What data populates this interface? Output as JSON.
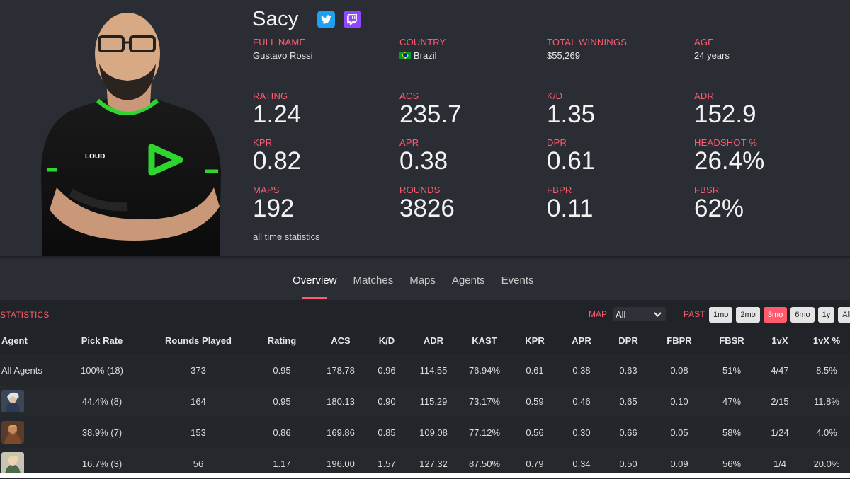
{
  "player": {
    "name": "Sacy",
    "full_name_label": "FULL NAME",
    "full_name": "Gustavo Rossi",
    "country_label": "COUNTRY",
    "country": "Brazil",
    "winnings_label": "TOTAL WINNINGS",
    "winnings": "$55,269",
    "age_label": "AGE",
    "age": "24 years"
  },
  "icons": {
    "twitter": "twitter-icon",
    "twitch": "twitch-icon",
    "flag": "brazil-flag-icon",
    "chevron": "chevron-down-icon"
  },
  "colors": {
    "accent": "#ff5b6e",
    "panel": "#2a2d33",
    "table_bg": "#202327",
    "twitter": "#1da1f2",
    "twitch": "#9146ff"
  },
  "summary": {
    "rating": {
      "label": "RATING",
      "value": "1.24"
    },
    "acs": {
      "label": "ACS",
      "value": "235.7"
    },
    "kd": {
      "label": "K/D",
      "value": "1.35"
    },
    "adr": {
      "label": "ADR",
      "value": "152.9"
    },
    "kpr": {
      "label": "KPR",
      "value": "0.82"
    },
    "apr": {
      "label": "APR",
      "value": "0.38"
    },
    "dpr": {
      "label": "DPR",
      "value": "0.61"
    },
    "hs": {
      "label": "HEADSHOT %",
      "value": "26.4%"
    },
    "maps": {
      "label": "MAPS",
      "value": "192"
    },
    "rounds": {
      "label": "ROUNDS",
      "value": "3826"
    },
    "fbpr": {
      "label": "FBPR",
      "value": "0.11"
    },
    "fbsr": {
      "label": "FBSR",
      "value": "62%"
    },
    "note": "all time statistics"
  },
  "tabs": [
    "Overview",
    "Matches",
    "Maps",
    "Agents",
    "Events"
  ],
  "statistics": {
    "title": "STATISTICS",
    "map_label": "MAP",
    "map_selected": "All",
    "past_label": "PAST",
    "periods": [
      "1mo",
      "2mo",
      "3mo",
      "6mo",
      "1y",
      "All"
    ],
    "active_period": "3mo",
    "headers": [
      "Agent",
      "Pick Rate",
      "Rounds Played",
      "Rating",
      "ACS",
      "K/D",
      "ADR",
      "KAST",
      "KPR",
      "APR",
      "DPR",
      "FBPR",
      "FBSR",
      "1vX",
      "1vX %"
    ],
    "rows": [
      {
        "agent": "All Agents",
        "cells": [
          "100% (18)",
          "373",
          "0.95",
          "178.78",
          "0.96",
          "114.55",
          "76.94%",
          "0.61",
          "0.38",
          "0.63",
          "0.08",
          "51%",
          "4/47",
          "8.5%"
        ]
      },
      {
        "agent": "",
        "agent_icon": "sova-agent-icon",
        "cells": [
          "44.4% (8)",
          "164",
          "0.95",
          "180.13",
          "0.90",
          "115.29",
          "73.17%",
          "0.59",
          "0.46",
          "0.65",
          "0.10",
          "47%",
          "2/15",
          "11.8%"
        ]
      },
      {
        "agent": "",
        "agent_icon": "breach-agent-icon",
        "cells": [
          "38.9% (7)",
          "153",
          "0.86",
          "169.86",
          "0.85",
          "109.08",
          "77.12%",
          "0.56",
          "0.30",
          "0.66",
          "0.05",
          "58%",
          "1/24",
          "4.0%"
        ]
      },
      {
        "agent": "",
        "agent_icon": "skye-agent-icon",
        "cells": [
          "16.7% (3)",
          "56",
          "1.17",
          "196.00",
          "1.57",
          "127.32",
          "87.50%",
          "0.79",
          "0.34",
          "0.50",
          "0.09",
          "56%",
          "1/4",
          "20.0%"
        ]
      }
    ]
  }
}
